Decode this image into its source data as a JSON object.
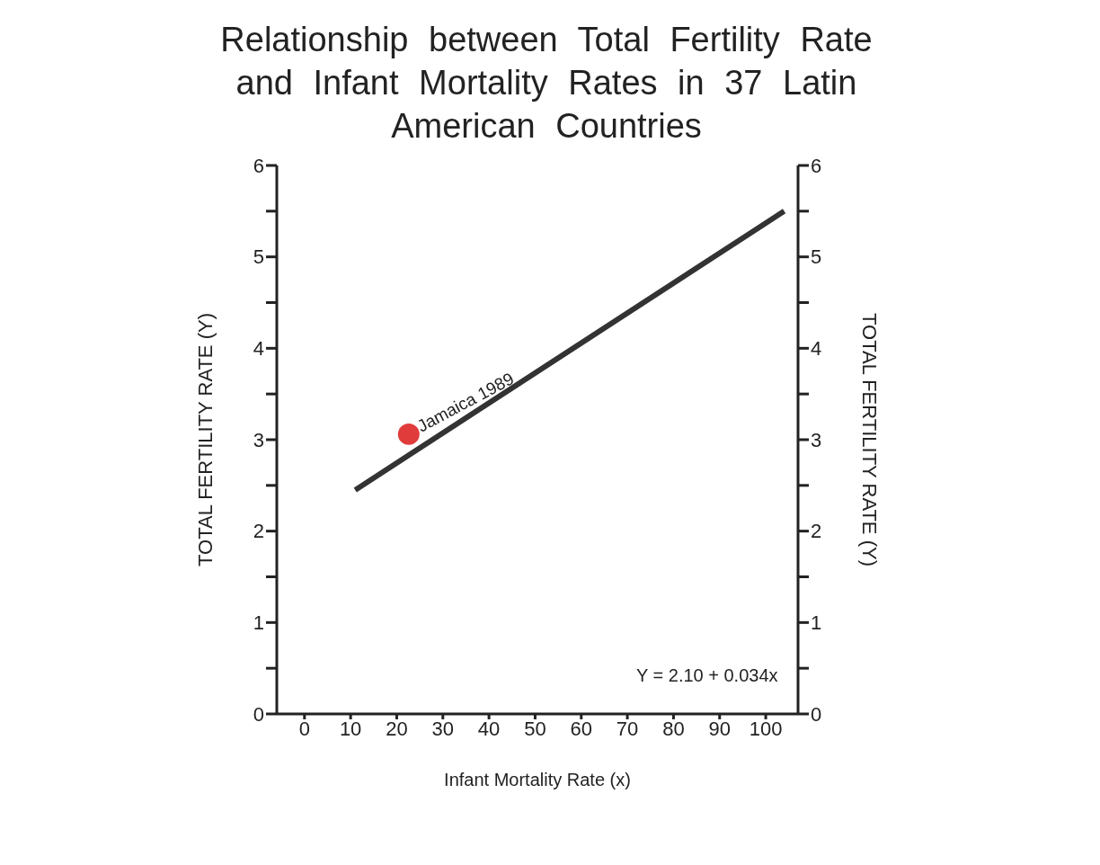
{
  "chart_data": {
    "type": "scatter",
    "title": "Relationship between Total Fertility Rate and Infant Mortality Rates in 37 Latin American Countries",
    "xlabel": "Infant Mortality Rate (x)",
    "ylabel": "TOTAL FERTILITY RATE (Y)",
    "y2label": "TOTAL FERTILITY RATE (Y)",
    "xlim": [
      -6,
      107
    ],
    "xticks": [
      0,
      10,
      20,
      30,
      40,
      50,
      60,
      70,
      80,
      90,
      100
    ],
    "ylim": [
      0,
      6
    ],
    "yticks": [
      0,
      {
        "value": 0.5,
        "label": null
      },
      1,
      {
        "value": 1.5,
        "label": null
      },
      2,
      {
        "value": 2.5,
        "label": null
      },
      3,
      {
        "value": 3.5,
        "label": null
      },
      4,
      {
        "value": 4.5,
        "label": null
      },
      5,
      {
        "value": 5.5,
        "label": null
      },
      6
    ],
    "y2lim": [
      0,
      6
    ],
    "y2ticks": [
      0,
      {
        "value": 0.5,
        "label": null
      },
      1,
      {
        "value": 1.5,
        "label": null
      },
      2,
      {
        "value": 2.5,
        "label": null
      },
      3,
      {
        "value": 3.5,
        "label": null
      },
      4,
      {
        "value": 4.5,
        "label": null
      },
      5,
      {
        "value": 5.5,
        "label": null
      },
      6
    ],
    "series": [
      {
        "type": "line",
        "x": [
          11,
          104
        ],
        "values": [
          2.45,
          5.5
        ],
        "color": "#333333"
      },
      {
        "x": [
          22.6
        ],
        "values": [
          3.06
        ],
        "color": "#e03c3c",
        "marker": "circle"
      }
    ],
    "grid": false,
    "annotations": [
      {
        "text": "Jamaica 1989",
        "x": 22.6,
        "y": 3.06
      },
      "Y = 2.10 + 0.034x"
    ]
  }
}
